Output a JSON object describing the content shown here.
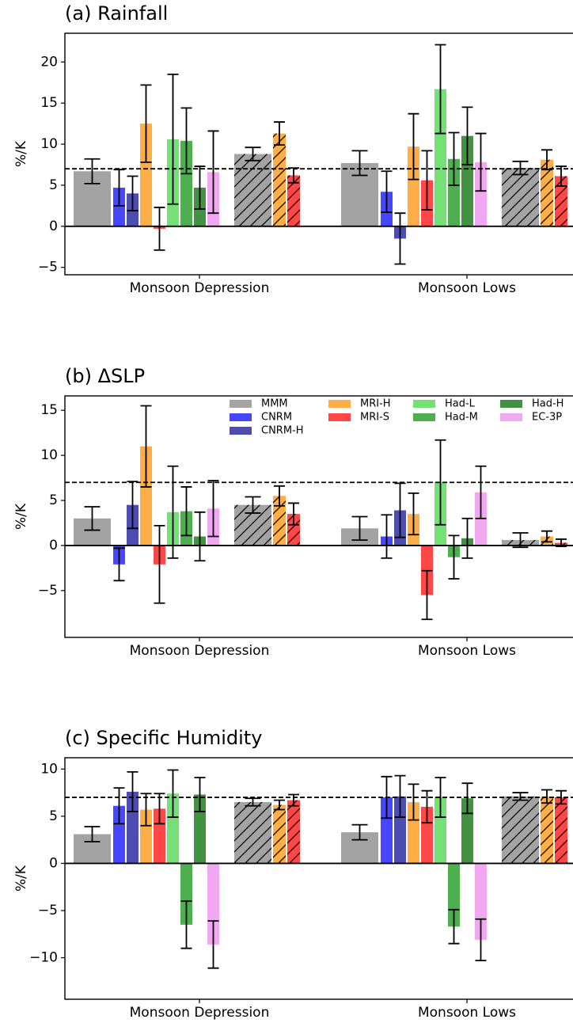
{
  "chart_data": [
    {
      "type": "bar",
      "title": "(a) Rainfall",
      "ylabel": "%/K",
      "categories": [
        "Monsoon Depression",
        "Monsoon Lows"
      ],
      "ylim": [
        -5.9,
        23.5
      ],
      "yticks": [
        {
          "value": -5,
          "label": "−5"
        },
        0,
        5,
        10,
        15,
        20
      ],
      "reference_line": 7,
      "series": [
        {
          "color": "#999999",
          "values": [
            6.7,
            7.7
          ],
          "errors": [
            1.5,
            1.5
          ],
          "hatched_values": [
            8.8,
            7.1
          ],
          "hatched_errors": [
            0.8,
            0.8
          ]
        },
        {
          "color": "#3333ff",
          "values": [
            4.7,
            4.2
          ],
          "errors": [
            2.2,
            2.5
          ]
        },
        {
          "color": "#3a3aa8",
          "values": [
            4.0,
            -1.5
          ],
          "errors": [
            2.1,
            3.1
          ]
        },
        {
          "color": "#ffa533",
          "values": [
            12.5,
            9.7
          ],
          "errors": [
            4.7,
            4.0
          ],
          "hatched_values": [
            11.3,
            8.1
          ],
          "hatched_errors": [
            1.4,
            1.2
          ]
        },
        {
          "color": "#ff3333",
          "values": [
            -0.3,
            5.6
          ],
          "errors": [
            2.6,
            3.6
          ],
          "hatched_values": [
            6.2,
            6.1
          ],
          "hatched_errors": [
            0.9,
            1.2
          ]
        },
        {
          "color": "#66dd66",
          "values": [
            10.6,
            16.7
          ],
          "errors": [
            7.9,
            5.4
          ]
        },
        {
          "color": "#3ca53c",
          "values": [
            10.4,
            8.2
          ],
          "errors": [
            4.0,
            3.2
          ]
        },
        {
          "color": "#2e862e",
          "values": [
            4.7,
            11.0
          ],
          "errors": [
            2.6,
            3.5
          ]
        },
        {
          "color": "#eea0ee",
          "values": [
            6.6,
            7.8
          ],
          "errors": [
            5.0,
            3.5
          ]
        }
      ]
    },
    {
      "type": "bar",
      "title": "(b) ΔSLP",
      "ylabel": "%/K",
      "categories": [
        "Monsoon Depression",
        "Monsoon Lows"
      ],
      "ylim": [
        -10.2,
        16.6
      ],
      "yticks": [
        {
          "value": -5,
          "label": "−5"
        },
        0,
        5,
        10,
        15
      ],
      "reference_line": 7,
      "legend": "upper right",
      "series": [
        {
          "name": "MMM",
          "color": "#999999",
          "values": [
            3.0,
            1.9
          ],
          "errors": [
            1.3,
            1.3
          ],
          "hatched_values": [
            4.5,
            0.6
          ],
          "hatched_errors": [
            0.9,
            0.8
          ]
        },
        {
          "name": "CNRM",
          "color": "#3333ff",
          "values": [
            -2.1,
            1.0
          ],
          "errors": [
            1.8,
            2.4
          ]
        },
        {
          "name": "CNRM-H",
          "color": "#3a3aa8",
          "values": [
            4.5,
            3.9
          ],
          "errors": [
            2.6,
            3.0
          ]
        },
        {
          "name": "MRI-H",
          "color": "#ffa533",
          "values": [
            11.0,
            3.5
          ],
          "errors": [
            4.5,
            2.3
          ],
          "hatched_values": [
            5.5,
            1.0
          ],
          "hatched_errors": [
            1.1,
            0.6
          ]
        },
        {
          "name": "MRI-S",
          "color": "#ff3333",
          "values": [
            -2.1,
            -5.5
          ],
          "errors": [
            4.3,
            2.7
          ],
          "hatched_values": [
            3.5,
            0.3
          ],
          "hatched_errors": [
            1.2,
            0.4
          ]
        },
        {
          "name": "Had-L",
          "color": "#66dd66",
          "values": [
            3.7,
            7.0
          ],
          "errors": [
            5.1,
            4.7
          ]
        },
        {
          "name": "Had-M",
          "color": "#3ca53c",
          "values": [
            3.8,
            -1.3
          ],
          "errors": [
            2.7,
            2.4
          ]
        },
        {
          "name": "Had-H",
          "color": "#2e862e",
          "values": [
            1.0,
            0.8
          ],
          "errors": [
            2.7,
            2.2
          ]
        },
        {
          "name": "EC-3P",
          "color": "#eea0ee",
          "values": [
            4.1,
            5.9
          ],
          "errors": [
            3.1,
            2.9
          ]
        }
      ]
    },
    {
      "type": "bar",
      "title": "(c) Specific Humidity",
      "ylabel": "%/K",
      "categories": [
        "Monsoon Depression",
        "Monsoon Lows"
      ],
      "ylim": [
        -14.4,
        11.2
      ],
      "yticks": [
        {
          "value": -10,
          "label": "−10"
        },
        {
          "value": -5,
          "label": "−5"
        },
        0,
        5,
        10
      ],
      "reference_line": 7,
      "series": [
        {
          "color": "#999999",
          "values": [
            3.1,
            3.3
          ],
          "errors": [
            0.8,
            0.8
          ],
          "hatched_values": [
            6.5,
            7.1
          ],
          "hatched_errors": [
            0.4,
            0.4
          ]
        },
        {
          "color": "#3333ff",
          "values": [
            6.1,
            7.0
          ],
          "errors": [
            1.9,
            2.2
          ]
        },
        {
          "color": "#3a3aa8",
          "values": [
            7.6,
            7.1
          ],
          "errors": [
            2.1,
            2.2
          ]
        },
        {
          "color": "#ffa533",
          "values": [
            5.7,
            6.5
          ],
          "errors": [
            1.7,
            1.9
          ],
          "hatched_values": [
            6.2,
            7.1
          ],
          "hatched_errors": [
            0.5,
            0.7
          ]
        },
        {
          "color": "#ff3333",
          "values": [
            5.8,
            6.0
          ],
          "errors": [
            1.6,
            1.7
          ],
          "hatched_values": [
            6.7,
            7.0
          ],
          "hatched_errors": [
            0.6,
            0.7
          ]
        },
        {
          "color": "#66dd66",
          "values": [
            7.4,
            7.0
          ],
          "errors": [
            2.5,
            2.1
          ]
        },
        {
          "color": "#3ca53c",
          "values": [
            -6.5,
            -6.7
          ],
          "errors": [
            2.5,
            1.8
          ]
        },
        {
          "color": "#2e862e",
          "values": [
            7.3,
            6.9
          ],
          "errors": [
            1.8,
            1.6
          ]
        },
        {
          "color": "#eea0ee",
          "values": [
            -8.6,
            -8.1
          ],
          "errors": [
            2.5,
            2.2
          ]
        }
      ]
    }
  ]
}
